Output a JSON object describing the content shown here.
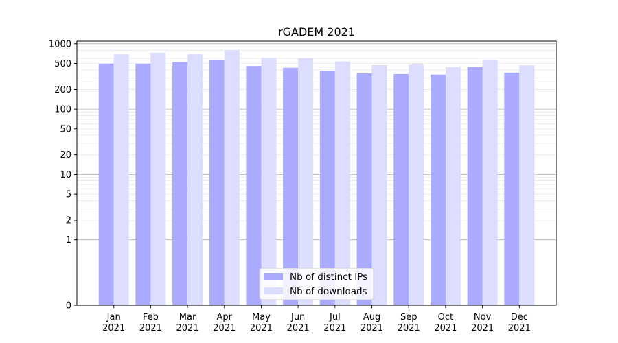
{
  "chart_data": {
    "type": "bar",
    "title": "rGADEM 2021",
    "xlabel": "",
    "ylabel": "",
    "yscale": "symlog",
    "ylim": [
      0,
      1000
    ],
    "y_ticks": [
      0,
      1,
      2,
      5,
      10,
      20,
      50,
      100,
      200,
      500,
      1000
    ],
    "grid": true,
    "legend_position": "bottom-center",
    "categories": [
      "Jan\n2021",
      "Feb\n2021",
      "Mar\n2021",
      "Apr\n2021",
      "May\n2021",
      "Jun\n2021",
      "Jul\n2021",
      "Aug\n2021",
      "Sep\n2021",
      "Oct\n2021",
      "Nov\n2021",
      "Dec\n2021"
    ],
    "series": [
      {
        "name": "Nb of distinct IPs",
        "color": "#aaaaff",
        "values": [
          495,
          495,
          525,
          560,
          458,
          430,
          385,
          352,
          345,
          338,
          440,
          362
        ]
      },
      {
        "name": "Nb of downloads",
        "color": "#ddddff",
        "values": [
          695,
          730,
          705,
          795,
          610,
          600,
          535,
          472,
          480,
          440,
          565,
          468
        ]
      }
    ]
  }
}
